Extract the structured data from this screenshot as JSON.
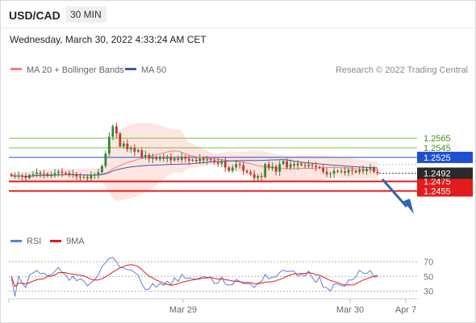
{
  "header": {
    "symbol": "USD/CAD",
    "timeframe": "30 MIN",
    "timestamp": "Wednesday, March 30, 2022 4:33:24 AM CET"
  },
  "legend": {
    "ma20": "MA 20 + Bollinger Bands",
    "ma50": "MA 50",
    "rsi": "RSI",
    "rsi_ma": "9MA"
  },
  "copyright": "Research © 2022 Trading Central",
  "colors": {
    "ma20": "#f08080",
    "ma50": "#3a5da8",
    "bands_fill": "#fde0dc",
    "candle_up": "#2e8b2e",
    "candle_down": "#c0392b",
    "resistance": "#7fbf4a",
    "pivot": "#1f4fd1",
    "support": "#e21b1b",
    "price_tag": "#2a2a2a",
    "arrow": "#2f66b3"
  },
  "chart_data": [
    {
      "type": "candlestick",
      "title": "",
      "ylim": [
        1.239,
        1.2685
      ],
      "levels": [
        {
          "value": 1.2565,
          "label": "1.2565",
          "kind": "resistance"
        },
        {
          "value": 1.2545,
          "label": "1.2545",
          "kind": "resistance"
        },
        {
          "value": 1.2525,
          "label": "1.2525",
          "kind": "pivot"
        },
        {
          "value": 1.2475,
          "label": "1.2475",
          "kind": "support"
        },
        {
          "value": 1.2455,
          "label": "1.2455",
          "kind": "support"
        }
      ],
      "last_price": {
        "value": 1.2492,
        "label": "1.2492"
      },
      "x_ticks": [
        "Mar 29",
        "Mar 30",
        "Apr 7"
      ],
      "close": [
        1.2487,
        1.2485,
        1.2487,
        1.2485,
        1.2482,
        1.2488,
        1.249,
        1.2493,
        1.249,
        1.2491,
        1.2486,
        1.2489,
        1.2492,
        1.2495,
        1.2493,
        1.2492,
        1.2488,
        1.249,
        1.2485,
        1.2483,
        1.2484,
        1.2481,
        1.2487,
        1.2489,
        1.2494,
        1.2507,
        1.2533,
        1.2568,
        1.259,
        1.2575,
        1.2548,
        1.2554,
        1.2542,
        1.2545,
        1.2537,
        1.254,
        1.2526,
        1.253,
        1.2522,
        1.2526,
        1.2521,
        1.2524,
        1.2522,
        1.2526,
        1.2519,
        1.2523,
        1.252,
        1.2526,
        1.2522,
        1.2518,
        1.252,
        1.2517,
        1.2523,
        1.2519,
        1.2521,
        1.2519,
        1.2515,
        1.2512,
        1.2517,
        1.2504,
        1.2497,
        1.2504,
        1.2511,
        1.2509,
        1.2497,
        1.2494,
        1.249,
        1.2482,
        1.2486,
        1.2484,
        1.2511,
        1.2502,
        1.2506,
        1.2495,
        1.2511,
        1.2517,
        1.2504,
        1.2511,
        1.2508,
        1.2512,
        1.2509,
        1.2507,
        1.251,
        1.2508,
        1.2505,
        1.2503,
        1.2495,
        1.249,
        1.2491,
        1.2497,
        1.2495,
        1.2496,
        1.2493,
        1.2499,
        1.2497,
        1.2494,
        1.2499,
        1.2496,
        1.2501,
        1.2504,
        1.2495,
        1.2492
      ],
      "rsi": {
        "ylim": [
          25,
          80
        ],
        "ticks": [
          70,
          50,
          30
        ]
      }
    }
  ]
}
